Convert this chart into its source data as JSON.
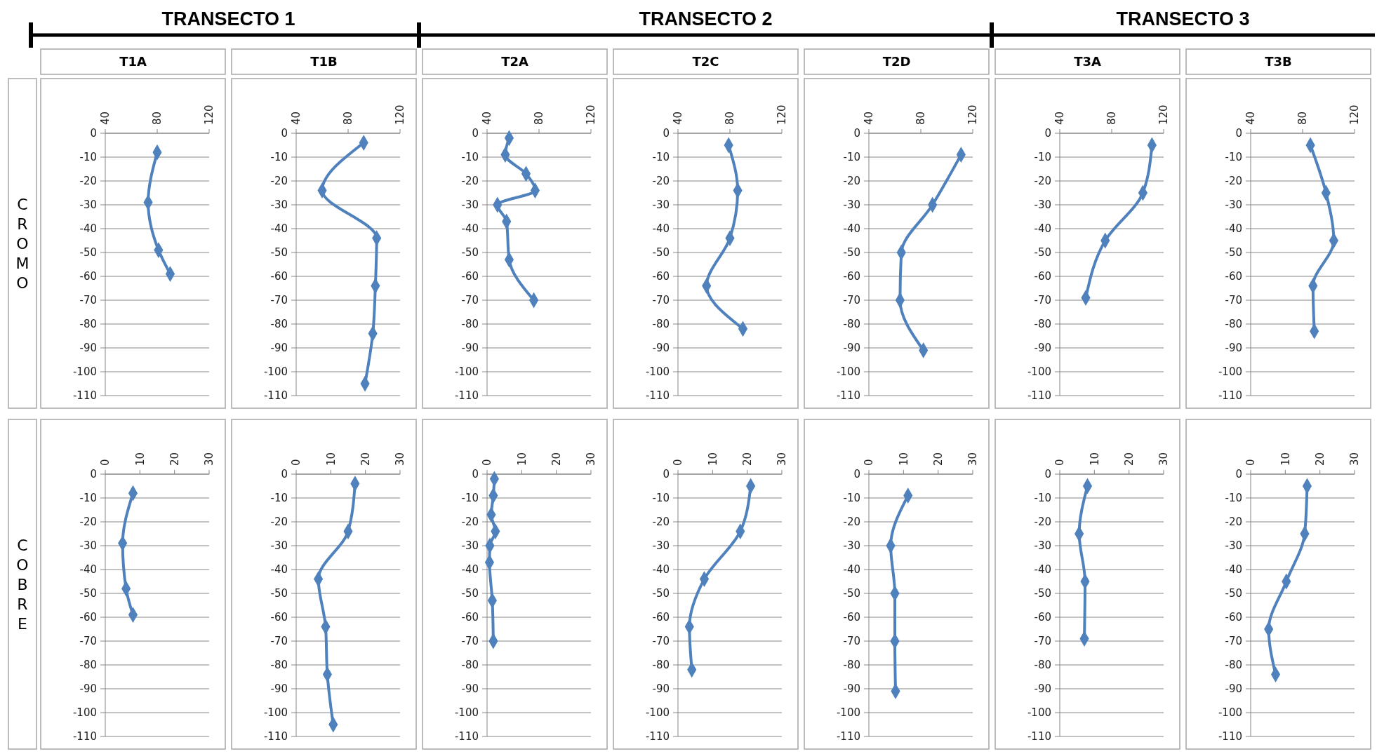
{
  "chart_data": [
    {
      "type": "line",
      "title": "T1A",
      "ylabel": "CROMO",
      "annotations": [
        "TRANSECTO 1"
      ],
      "xlim": [
        40,
        120
      ],
      "xticks": [
        40,
        80,
        120
      ],
      "ylim": [
        -110,
        0
      ],
      "yticks": [
        0,
        -10,
        -20,
        -30,
        -40,
        -50,
        -60,
        -70,
        -80,
        -90,
        -100,
        -110
      ],
      "grid": "y",
      "marker": "diamond",
      "line_style": "solid",
      "series": [
        {
          "color": "#4f81bd",
          "x": [
            80,
            73,
            81,
            90
          ],
          "values": [
            -8,
            -29,
            -49,
            -59
          ]
        }
      ]
    },
    {
      "type": "line",
      "title": "T1B",
      "xlim": [
        40,
        120
      ],
      "xticks": [
        40,
        80,
        120
      ],
      "ylim": [
        -110,
        0
      ],
      "yticks": [
        0,
        -10,
        -20,
        -30,
        -40,
        -50,
        -60,
        -70,
        -80,
        -90,
        -100,
        -110
      ],
      "grid": "y",
      "marker": "diamond",
      "line_style": "solid",
      "series": [
        {
          "color": "#4f81bd",
          "x": [
            92,
            60,
            102,
            101,
            99,
            93
          ],
          "values": [
            -4,
            -24,
            -44,
            -64,
            -84,
            -105
          ]
        }
      ]
    },
    {
      "type": "line",
      "title": "T2A",
      "annotations": [
        "TRANSECTO 2"
      ],
      "xlim": [
        40,
        120
      ],
      "xticks": [
        40,
        80,
        120
      ],
      "ylim": [
        -110,
        0
      ],
      "yticks": [
        0,
        -10,
        -20,
        -30,
        -40,
        -50,
        -60,
        -70,
        -80,
        -90,
        -100,
        -110
      ],
      "grid": "y",
      "marker": "diamond",
      "line_style": "solid",
      "series": [
        {
          "color": "#4f81bd",
          "x": [
            57,
            54,
            70,
            77,
            48,
            55,
            57,
            76
          ],
          "values": [
            -2,
            -9,
            -17,
            -24,
            -30,
            -37,
            -53,
            -70
          ]
        }
      ]
    },
    {
      "type": "line",
      "title": "T2C",
      "xlim": [
        40,
        120
      ],
      "xticks": [
        40,
        80,
        120
      ],
      "ylim": [
        -110,
        0
      ],
      "yticks": [
        0,
        -10,
        -20,
        -30,
        -40,
        -50,
        -60,
        -70,
        -80,
        -90,
        -100,
        -110
      ],
      "grid": "y",
      "marker": "diamond",
      "line_style": "solid",
      "series": [
        {
          "color": "#4f81bd",
          "x": [
            79,
            86,
            80,
            62,
            90
          ],
          "values": [
            -5,
            -24,
            -44,
            -64,
            -82
          ]
        }
      ]
    },
    {
      "type": "line",
      "title": "T2D",
      "xlim": [
        40,
        120
      ],
      "xticks": [
        40,
        80,
        120
      ],
      "ylim": [
        -110,
        0
      ],
      "yticks": [
        0,
        -10,
        -20,
        -30,
        -40,
        -50,
        -60,
        -70,
        -80,
        -90,
        -100,
        -110
      ],
      "grid": "y",
      "marker": "diamond",
      "line_style": "solid",
      "series": [
        {
          "color": "#4f81bd",
          "x": [
            111,
            89,
            65,
            64,
            82
          ],
          "values": [
            -9,
            -30,
            -50,
            -70,
            -91
          ]
        }
      ]
    },
    {
      "type": "line",
      "title": "T3A",
      "annotations": [
        "TRANSECTO 3"
      ],
      "xlim": [
        40,
        120
      ],
      "xticks": [
        40,
        80,
        120
      ],
      "ylim": [
        -110,
        0
      ],
      "yticks": [
        0,
        -10,
        -20,
        -30,
        -40,
        -50,
        -60,
        -70,
        -80,
        -90,
        -100,
        -110
      ],
      "grid": "y",
      "marker": "diamond",
      "line_style": "solid",
      "series": [
        {
          "color": "#4f81bd",
          "x": [
            111,
            104,
            75,
            60
          ],
          "values": [
            -5,
            -25,
            -45,
            -69
          ]
        }
      ]
    },
    {
      "type": "line",
      "title": "T3B",
      "xlim": [
        40,
        120
      ],
      "xticks": [
        40,
        80,
        120
      ],
      "ylim": [
        -110,
        0
      ],
      "yticks": [
        0,
        -10,
        -20,
        -30,
        -40,
        -50,
        -60,
        -70,
        -80,
        -90,
        -100,
        -110
      ],
      "grid": "y",
      "marker": "diamond",
      "line_style": "solid",
      "series": [
        {
          "color": "#4f81bd",
          "x": [
            86,
            98,
            104,
            88,
            89
          ],
          "values": [
            -5,
            -25,
            -45,
            -64,
            -83
          ]
        }
      ]
    },
    {
      "type": "line",
      "ylabel": "COBRE",
      "xlim": [
        0,
        30
      ],
      "xticks": [
        0,
        10,
        20,
        30
      ],
      "ylim": [
        -110,
        0
      ],
      "yticks": [
        0,
        -10,
        -20,
        -30,
        -40,
        -50,
        -60,
        -70,
        -80,
        -90,
        -100,
        -110
      ],
      "grid": "y",
      "marker": "diamond",
      "line_style": "solid",
      "series": [
        {
          "color": "#4f81bd",
          "x": [
            8,
            5,
            6,
            8
          ],
          "values": [
            -8,
            -29,
            -48,
            -59
          ]
        }
      ]
    },
    {
      "type": "line",
      "xlim": [
        0,
        30
      ],
      "xticks": [
        0,
        10,
        20,
        30
      ],
      "ylim": [
        -110,
        0
      ],
      "yticks": [
        0,
        -10,
        -20,
        -30,
        -40,
        -50,
        -60,
        -70,
        -80,
        -90,
        -100,
        -110
      ],
      "grid": "y",
      "marker": "diamond",
      "line_style": "solid",
      "series": [
        {
          "color": "#4f81bd",
          "x": [
            17,
            15,
            6.4,
            8.5,
            9,
            10.7
          ],
          "values": [
            -4,
            -24,
            -44,
            -64,
            -84,
            -105
          ]
        }
      ]
    },
    {
      "type": "line",
      "xlim": [
        0,
        30
      ],
      "xticks": [
        0,
        10,
        20,
        30
      ],
      "ylim": [
        -110,
        0
      ],
      "yticks": [
        0,
        -10,
        -20,
        -30,
        -40,
        -50,
        -60,
        -70,
        -80,
        -90,
        -100,
        -110
      ],
      "grid": "y",
      "marker": "diamond",
      "line_style": "solid",
      "series": [
        {
          "color": "#4f81bd",
          "x": [
            2.1,
            1.8,
            1.2,
            2.4,
            0.8,
            0.7,
            1.5,
            1.8
          ],
          "values": [
            -2,
            -9,
            -17,
            -24,
            -30,
            -37,
            -53,
            -70
          ]
        }
      ]
    },
    {
      "type": "line",
      "xlim": [
        0,
        30
      ],
      "xticks": [
        0,
        10,
        20,
        30
      ],
      "ylim": [
        -110,
        0
      ],
      "yticks": [
        0,
        -10,
        -20,
        -30,
        -40,
        -50,
        -60,
        -70,
        -80,
        -90,
        -100,
        -110
      ],
      "grid": "y",
      "marker": "diamond",
      "line_style": "solid",
      "series": [
        {
          "color": "#4f81bd",
          "x": [
            21,
            18,
            7.6,
            3.3,
            4
          ],
          "values": [
            -5,
            -24,
            -44,
            -64,
            -82
          ]
        }
      ]
    },
    {
      "type": "line",
      "xlim": [
        0,
        30
      ],
      "xticks": [
        0,
        10,
        20,
        30
      ],
      "ylim": [
        -110,
        0
      ],
      "yticks": [
        0,
        -10,
        -20,
        -30,
        -40,
        -50,
        -60,
        -70,
        -80,
        -90,
        -100,
        -110
      ],
      "grid": "y",
      "marker": "diamond",
      "line_style": "solid",
      "series": [
        {
          "color": "#4f81bd",
          "x": [
            11.3,
            6.3,
            7.5,
            7.5,
            7.7
          ],
          "values": [
            -9,
            -30,
            -50,
            -70,
            -91
          ]
        }
      ]
    },
    {
      "type": "line",
      "xlim": [
        0,
        30
      ],
      "xticks": [
        0,
        10,
        20,
        30
      ],
      "ylim": [
        -110,
        0
      ],
      "yticks": [
        0,
        -10,
        -20,
        -30,
        -40,
        -50,
        -60,
        -70,
        -80,
        -90,
        -100,
        -110
      ],
      "grid": "y",
      "marker": "diamond",
      "line_style": "solid",
      "series": [
        {
          "color": "#4f81bd",
          "x": [
            8,
            5.6,
            7.3,
            7.1
          ],
          "values": [
            -5,
            -25,
            -45,
            -69
          ]
        }
      ]
    },
    {
      "type": "line",
      "xlim": [
        0,
        30
      ],
      "xticks": [
        0,
        10,
        20,
        30
      ],
      "ylim": [
        -110,
        0
      ],
      "yticks": [
        0,
        -10,
        -20,
        -30,
        -40,
        -50,
        -60,
        -70,
        -80,
        -90,
        -100,
        -110
      ],
      "grid": "y",
      "marker": "diamond",
      "line_style": "solid",
      "series": [
        {
          "color": "#4f81bd",
          "x": [
            16.3,
            15.6,
            10.3,
            5.2,
            7.2
          ],
          "values": [
            -5,
            -25,
            -45,
            -65,
            -84
          ]
        }
      ]
    }
  ]
}
